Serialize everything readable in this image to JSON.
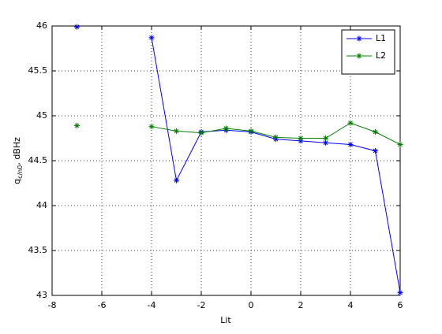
{
  "chart_data": {
    "type": "line",
    "xlabel": "Lit",
    "ylabel": {
      "main": "q",
      "sub": "c/n0",
      "rest": ", dBHz"
    },
    "x": [
      -7,
      -6,
      -5,
      -4,
      -3,
      -2,
      -1,
      0,
      1,
      2,
      3,
      4,
      5,
      6
    ],
    "series": [
      {
        "name": "L1",
        "color": "#0000ff",
        "values": [
          45.99,
          null,
          null,
          45.87,
          44.28,
          44.82,
          44.84,
          44.82,
          44.74,
          44.72,
          44.7,
          44.68,
          44.61,
          43.03
        ]
      },
      {
        "name": "L2",
        "color": "#008000",
        "values": [
          44.89,
          null,
          null,
          44.88,
          44.83,
          44.81,
          44.86,
          44.83,
          44.76,
          44.75,
          44.75,
          44.92,
          44.82,
          44.68
        ]
      }
    ],
    "xlim": [
      -8,
      6
    ],
    "xticks": [
      -8,
      -6,
      -4,
      -2,
      0,
      2,
      4,
      6
    ],
    "ylim": [
      43,
      46
    ],
    "yticks": [
      43,
      43.5,
      44,
      44.5,
      45,
      45.5,
      46
    ],
    "grid": true,
    "legend": "northeast",
    "marker": "*"
  }
}
